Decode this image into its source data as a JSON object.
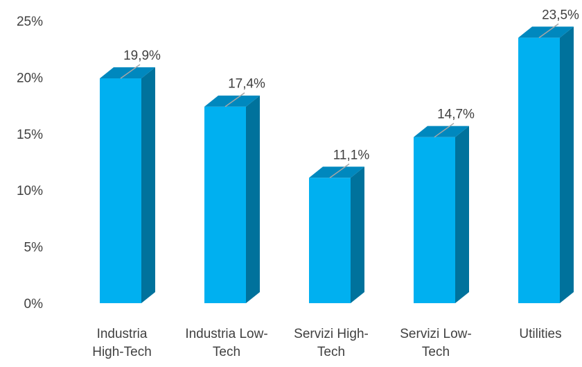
{
  "chart_data": {
    "type": "bar",
    "style": "3d-column",
    "categories": [
      [
        "Industria",
        "High-Tech"
      ],
      [
        "Industria Low-",
        "Tech"
      ],
      [
        "Servizi High-",
        "Tech"
      ],
      [
        "Servizi Low-",
        "Tech"
      ],
      [
        "Utilities"
      ]
    ],
    "values": [
      19.9,
      17.4,
      11.1,
      14.7,
      23.5
    ],
    "data_labels": [
      "19,9%",
      "17,4%",
      "11,1%",
      "14,7%",
      "23,5%"
    ],
    "y_ticks": [
      0,
      5,
      10,
      15,
      20,
      25
    ],
    "y_tick_labels": [
      "0%",
      "5%",
      "10%",
      "15%",
      "20%",
      "25%"
    ],
    "ylim": [
      0,
      25
    ],
    "title": "",
    "xlabel": "",
    "ylabel": "",
    "grid": false,
    "legend": "none",
    "colors": {
      "front": "#00B0F0",
      "side": "#00729C",
      "top": "#0088BE",
      "leader": "#A6A6A6",
      "text": "#404040"
    }
  }
}
